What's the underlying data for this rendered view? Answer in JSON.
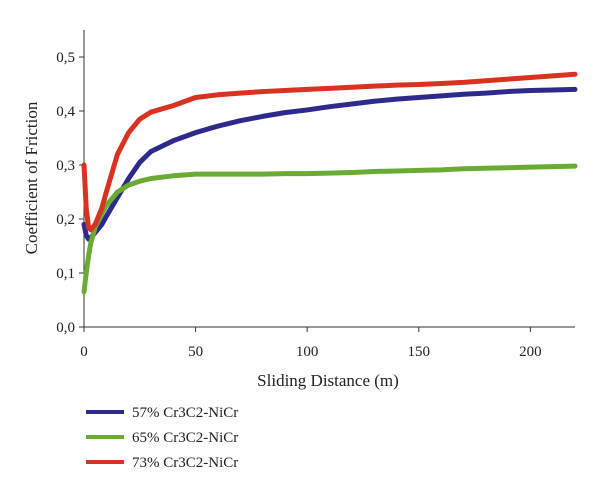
{
  "chart_data": {
    "type": "line",
    "title": "",
    "xlabel": "Sliding Distance (m)",
    "ylabel": "Coefficient of Friction",
    "xlim": [
      0,
      220
    ],
    "ylim": [
      0,
      0.55
    ],
    "x_ticks": [
      0,
      50,
      100,
      150,
      200
    ],
    "y_ticks": [
      0.0,
      0.1,
      0.2,
      0.3,
      0.4,
      0.5
    ],
    "x_tick_labels": [
      "0",
      "50",
      "100",
      "150",
      "200"
    ],
    "y_tick_labels": [
      "0,0",
      "0,1",
      "0,2",
      "0,3",
      "0,4",
      "0,5"
    ],
    "grid": false,
    "legend_position": "bottom-left",
    "series": [
      {
        "name": "57% Cr3C2-NiCr",
        "color": "#2e2a8c",
        "x": [
          0,
          1,
          2,
          3,
          5,
          8,
          10,
          15,
          20,
          25,
          30,
          40,
          50,
          60,
          70,
          80,
          90,
          100,
          110,
          120,
          130,
          140,
          150,
          160,
          170,
          180,
          190,
          200,
          210,
          220
        ],
        "y": [
          0.19,
          0.17,
          0.163,
          0.165,
          0.175,
          0.19,
          0.205,
          0.24,
          0.275,
          0.305,
          0.325,
          0.345,
          0.36,
          0.372,
          0.382,
          0.39,
          0.397,
          0.402,
          0.408,
          0.413,
          0.418,
          0.422,
          0.425,
          0.428,
          0.431,
          0.433,
          0.436,
          0.438,
          0.439,
          0.44
        ]
      },
      {
        "name": "65% Cr3C2-NiCr",
        "color": "#6aac33",
        "x": [
          0,
          1,
          2,
          3,
          5,
          8,
          10,
          15,
          20,
          25,
          30,
          40,
          50,
          60,
          70,
          80,
          90,
          100,
          110,
          120,
          130,
          140,
          150,
          160,
          170,
          180,
          190,
          200,
          210,
          220
        ],
        "y": [
          0.065,
          0.1,
          0.13,
          0.155,
          0.185,
          0.21,
          0.225,
          0.25,
          0.263,
          0.27,
          0.275,
          0.28,
          0.283,
          0.283,
          0.283,
          0.283,
          0.284,
          0.284,
          0.285,
          0.286,
          0.288,
          0.289,
          0.29,
          0.291,
          0.293,
          0.294,
          0.295,
          0.296,
          0.297,
          0.298
        ]
      },
      {
        "name": "73% Cr3C2-NiCr",
        "color": "#d93220",
        "x": [
          0,
          1,
          2,
          3,
          5,
          8,
          10,
          15,
          20,
          25,
          30,
          40,
          50,
          60,
          70,
          80,
          90,
          100,
          110,
          120,
          130,
          140,
          150,
          160,
          170,
          180,
          190,
          200,
          210,
          220
        ],
        "y": [
          0.3,
          0.22,
          0.185,
          0.18,
          0.19,
          0.22,
          0.25,
          0.32,
          0.36,
          0.385,
          0.398,
          0.41,
          0.425,
          0.43,
          0.433,
          0.436,
          0.438,
          0.44,
          0.442,
          0.444,
          0.446,
          0.448,
          0.449,
          0.451,
          0.453,
          0.456,
          0.459,
          0.462,
          0.465,
          0.468
        ]
      }
    ]
  }
}
